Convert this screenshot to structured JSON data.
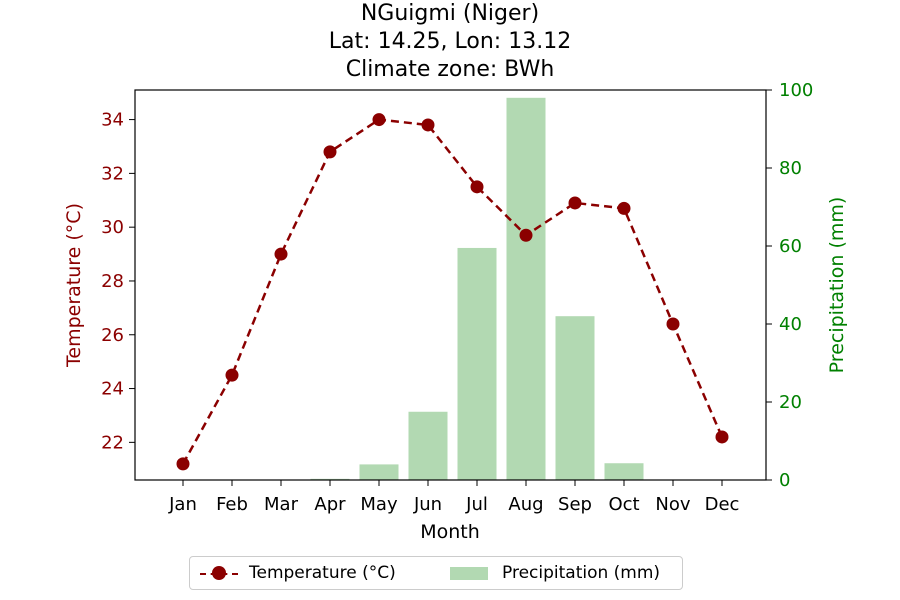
{
  "chart_data": {
    "type": "bar+line",
    "title_lines": [
      "NGuigmi (Niger)",
      "Lat: 14.25, Lon: 13.12",
      "Climate zone: BWh"
    ],
    "xlabel": "Month",
    "categories": [
      "Jan",
      "Feb",
      "Mar",
      "Apr",
      "May",
      "Jun",
      "Jul",
      "Aug",
      "Sep",
      "Oct",
      "Nov",
      "Dec"
    ],
    "series": [
      {
        "name": "Temperature (°C)",
        "kind": "line",
        "axis": "left",
        "color": "#8b0000",
        "style": "dashed with circle markers",
        "values": [
          21.2,
          24.5,
          29.0,
          32.8,
          34.0,
          33.8,
          31.5,
          29.7,
          30.9,
          30.7,
          26.4,
          22.2
        ]
      },
      {
        "name": "Precipitation (mm)",
        "kind": "bar",
        "axis": "right",
        "color": "#b2d9b2",
        "values": [
          0,
          0,
          0,
          0.3,
          4.0,
          17.5,
          59.5,
          98.0,
          42.0,
          4.3,
          0,
          0
        ]
      }
    ],
    "y_left": {
      "label": "Temperature (°C)",
      "color": "#8b0000",
      "range": [
        20.6,
        35.1
      ],
      "ticks": [
        22,
        24,
        26,
        28,
        30,
        32,
        34
      ]
    },
    "y_right": {
      "label": "Precipitation (mm)",
      "color": "#008000",
      "range": [
        0,
        100
      ],
      "ticks": [
        0,
        20,
        40,
        60,
        80,
        100
      ]
    },
    "legend": {
      "placement": "bottom-center",
      "entries": [
        "Temperature (°C)",
        "Precipitation (mm)"
      ]
    },
    "grid": false
  }
}
